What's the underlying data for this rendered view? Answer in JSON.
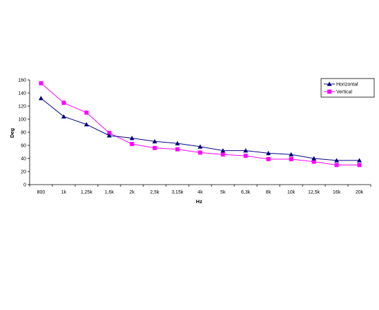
{
  "chart_data": {
    "type": "line",
    "xlabel": "Hz",
    "ylabel": "Deg",
    "ylim": [
      0,
      160
    ],
    "yticks": [
      0,
      20,
      40,
      60,
      80,
      100,
      120,
      140,
      160
    ],
    "grid": false,
    "legend_position": "top-right",
    "categories": [
      "800",
      "1k",
      "1,25k",
      "1,6k",
      "2k",
      "2,5k",
      "3,15k",
      "4k",
      "5k",
      "6,3k",
      "8k",
      "10k",
      "12,5k",
      "16k",
      "20k"
    ],
    "series": [
      {
        "name": "Horizontal",
        "color": "#000080",
        "marker": "triangle",
        "values": [
          132,
          104,
          92,
          75,
          71,
          66,
          63,
          58,
          52,
          52,
          48,
          46,
          40,
          37,
          37
        ]
      },
      {
        "name": "Vertical",
        "color": "#ff00ff",
        "marker": "square",
        "values": [
          155,
          125,
          110,
          79,
          62,
          56,
          54,
          49,
          46,
          44,
          39,
          39,
          35,
          30,
          30
        ]
      }
    ]
  }
}
